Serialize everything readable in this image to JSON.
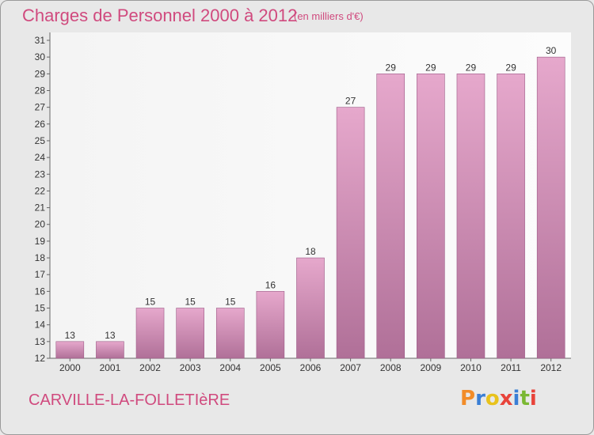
{
  "title": "Charges de Personnel 2000 à 2012",
  "subtitle": "(en milliers d'€)",
  "place_name": "CARVILLE-LA-FOLLETIèRE",
  "logo": {
    "text": "Proxiti",
    "letter_colors": [
      "#f28c28",
      "#3a7fd5",
      "#e8c21c",
      "#e8433a",
      "#3a7fd5",
      "#7ab833",
      "#e8433a"
    ]
  },
  "colors": {
    "accent": "#d04a7e",
    "bar_top": "#e6a8cc",
    "bar_bottom": "#b07098",
    "bar_border": "#9c5a86"
  },
  "chart_data": {
    "type": "bar",
    "categories": [
      "2000",
      "2001",
      "2002",
      "2003",
      "2004",
      "2005",
      "2006",
      "2007",
      "2008",
      "2009",
      "2010",
      "2011",
      "2012"
    ],
    "values": [
      13,
      13,
      15,
      15,
      15,
      16,
      18,
      27,
      29,
      29,
      29,
      29,
      30
    ],
    "ylim": [
      12,
      31
    ],
    "yticks": [
      12,
      13,
      14,
      15,
      16,
      17,
      18,
      19,
      20,
      21,
      22,
      23,
      24,
      25,
      26,
      27,
      28,
      29,
      30,
      31
    ],
    "title": "Charges de Personnel 2000 à 2012",
    "xlabel": "",
    "ylabel": "",
    "grid": false,
    "data_labels": true
  }
}
